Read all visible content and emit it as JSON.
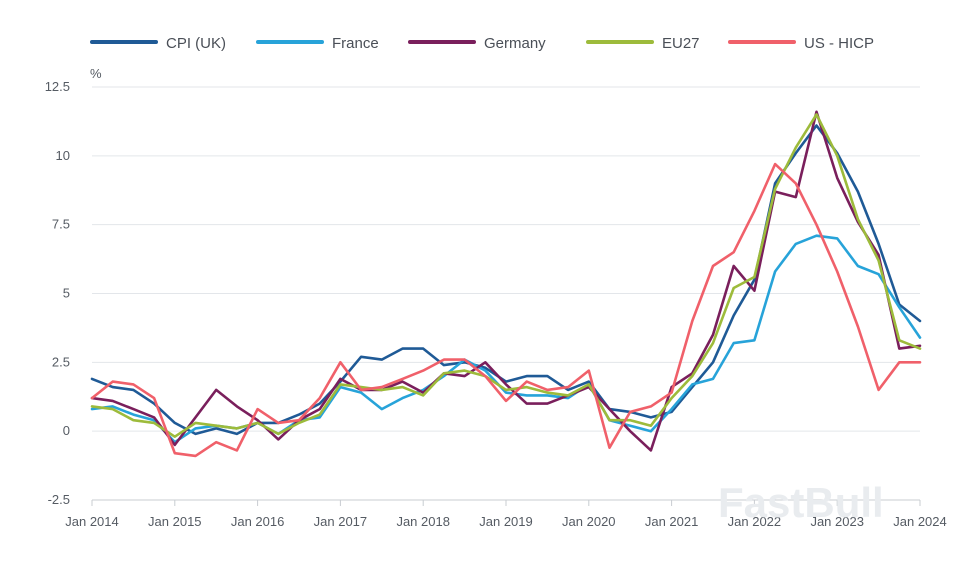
{
  "chart_data": {
    "type": "line",
    "title": "",
    "ylabel": "%",
    "xlabel": "",
    "ylim": [
      -2.5,
      12.5
    ],
    "xlim": [
      2014.0,
      2024.0
    ],
    "yticks": [
      -2.5,
      0,
      2.5,
      5,
      7.5,
      10,
      12.5
    ],
    "ytick_labels": [
      "-2.5",
      "0",
      "2.5",
      "5",
      "7.5",
      "10",
      "12.5"
    ],
    "xticks": [
      2014,
      2015,
      2016,
      2017,
      2018,
      2019,
      2020,
      2021,
      2022,
      2023,
      2024
    ],
    "xtick_labels": [
      "Jan 2014",
      "Jan 2015",
      "Jan 2016",
      "Jan 2017",
      "Jan 2018",
      "Jan 2019",
      "Jan 2020",
      "Jan 2021",
      "Jan 2022",
      "Jan 2023",
      "Jan 2024"
    ],
    "grid": true,
    "legend_position": "top",
    "watermark": "FastBull",
    "series": [
      {
        "name": "CPI (UK)",
        "color": "#1f5a96",
        "points": [
          [
            2014.0,
            1.9
          ],
          [
            2014.25,
            1.6
          ],
          [
            2014.5,
            1.5
          ],
          [
            2014.75,
            1.0
          ],
          [
            2015.0,
            0.3
          ],
          [
            2015.25,
            -0.1
          ],
          [
            2015.5,
            0.1
          ],
          [
            2015.75,
            -0.1
          ],
          [
            2016.0,
            0.3
          ],
          [
            2016.25,
            0.3
          ],
          [
            2016.5,
            0.6
          ],
          [
            2016.75,
            1.0
          ],
          [
            2017.0,
            1.8
          ],
          [
            2017.25,
            2.7
          ],
          [
            2017.5,
            2.6
          ],
          [
            2017.75,
            3.0
          ],
          [
            2018.0,
            3.0
          ],
          [
            2018.25,
            2.4
          ],
          [
            2018.5,
            2.5
          ],
          [
            2018.75,
            2.3
          ],
          [
            2019.0,
            1.8
          ],
          [
            2019.25,
            2.0
          ],
          [
            2019.5,
            2.0
          ],
          [
            2019.75,
            1.5
          ],
          [
            2020.0,
            1.8
          ],
          [
            2020.25,
            0.8
          ],
          [
            2020.5,
            0.7
          ],
          [
            2020.75,
            0.5
          ],
          [
            2021.0,
            0.7
          ],
          [
            2021.25,
            1.6
          ],
          [
            2021.5,
            2.5
          ],
          [
            2021.75,
            4.2
          ],
          [
            2022.0,
            5.5
          ],
          [
            2022.25,
            9.0
          ],
          [
            2022.5,
            10.1
          ],
          [
            2022.75,
            11.1
          ],
          [
            2023.0,
            10.1
          ],
          [
            2023.25,
            8.7
          ],
          [
            2023.5,
            6.8
          ],
          [
            2023.75,
            4.6
          ],
          [
            2024.0,
            4.0
          ]
        ]
      },
      {
        "name": "France",
        "color": "#27a3d9",
        "points": [
          [
            2014.0,
            0.8
          ],
          [
            2014.25,
            0.9
          ],
          [
            2014.5,
            0.6
          ],
          [
            2014.75,
            0.4
          ],
          [
            2015.0,
            -0.4
          ],
          [
            2015.25,
            0.1
          ],
          [
            2015.5,
            0.2
          ],
          [
            2015.75,
            0.1
          ],
          [
            2016.0,
            0.3
          ],
          [
            2016.25,
            -0.1
          ],
          [
            2016.5,
            0.4
          ],
          [
            2016.75,
            0.5
          ],
          [
            2017.0,
            1.6
          ],
          [
            2017.25,
            1.4
          ],
          [
            2017.5,
            0.8
          ],
          [
            2017.75,
            1.2
          ],
          [
            2018.0,
            1.5
          ],
          [
            2018.25,
            2.0
          ],
          [
            2018.5,
            2.6
          ],
          [
            2018.75,
            2.2
          ],
          [
            2019.0,
            1.4
          ],
          [
            2019.25,
            1.3
          ],
          [
            2019.5,
            1.3
          ],
          [
            2019.75,
            1.2
          ],
          [
            2020.0,
            1.7
          ],
          [
            2020.25,
            0.4
          ],
          [
            2020.5,
            0.2
          ],
          [
            2020.75,
            0.0
          ],
          [
            2021.0,
            0.8
          ],
          [
            2021.25,
            1.7
          ],
          [
            2021.5,
            1.9
          ],
          [
            2021.75,
            3.2
          ],
          [
            2022.0,
            3.3
          ],
          [
            2022.25,
            5.8
          ],
          [
            2022.5,
            6.8
          ],
          [
            2022.75,
            7.1
          ],
          [
            2023.0,
            7.0
          ],
          [
            2023.25,
            6.0
          ],
          [
            2023.5,
            5.7
          ],
          [
            2023.75,
            4.5
          ],
          [
            2024.0,
            3.4
          ]
        ]
      },
      {
        "name": "Germany",
        "color": "#7a1f5c",
        "points": [
          [
            2014.0,
            1.2
          ],
          [
            2014.25,
            1.1
          ],
          [
            2014.5,
            0.8
          ],
          [
            2014.75,
            0.5
          ],
          [
            2015.0,
            -0.5
          ],
          [
            2015.25,
            0.5
          ],
          [
            2015.5,
            1.5
          ],
          [
            2015.75,
            0.9
          ],
          [
            2016.0,
            0.4
          ],
          [
            2016.25,
            -0.3
          ],
          [
            2016.5,
            0.4
          ],
          [
            2016.75,
            0.8
          ],
          [
            2017.0,
            1.9
          ],
          [
            2017.25,
            1.5
          ],
          [
            2017.5,
            1.5
          ],
          [
            2017.75,
            1.8
          ],
          [
            2018.0,
            1.4
          ],
          [
            2018.25,
            2.1
          ],
          [
            2018.5,
            2.0
          ],
          [
            2018.75,
            2.5
          ],
          [
            2019.0,
            1.7
          ],
          [
            2019.25,
            1.0
          ],
          [
            2019.5,
            1.0
          ],
          [
            2019.75,
            1.3
          ],
          [
            2020.0,
            1.6
          ],
          [
            2020.25,
            0.8
          ],
          [
            2020.5,
            0.0
          ],
          [
            2020.75,
            -0.7
          ],
          [
            2021.0,
            1.6
          ],
          [
            2021.25,
            2.1
          ],
          [
            2021.5,
            3.5
          ],
          [
            2021.75,
            6.0
          ],
          [
            2022.0,
            5.1
          ],
          [
            2022.25,
            8.7
          ],
          [
            2022.5,
            8.5
          ],
          [
            2022.75,
            11.6
          ],
          [
            2023.0,
            9.2
          ],
          [
            2023.25,
            7.6
          ],
          [
            2023.5,
            6.4
          ],
          [
            2023.75,
            3.0
          ],
          [
            2024.0,
            3.1
          ]
        ]
      },
      {
        "name": "EU27",
        "color": "#9dbb3b",
        "points": [
          [
            2014.0,
            0.9
          ],
          [
            2014.25,
            0.8
          ],
          [
            2014.5,
            0.4
          ],
          [
            2014.75,
            0.3
          ],
          [
            2015.0,
            -0.2
          ],
          [
            2015.25,
            0.3
          ],
          [
            2015.5,
            0.2
          ],
          [
            2015.75,
            0.1
          ],
          [
            2016.0,
            0.3
          ],
          [
            2016.25,
            -0.1
          ],
          [
            2016.5,
            0.3
          ],
          [
            2016.75,
            0.6
          ],
          [
            2017.0,
            1.7
          ],
          [
            2017.25,
            1.6
          ],
          [
            2017.5,
            1.5
          ],
          [
            2017.75,
            1.6
          ],
          [
            2018.0,
            1.3
          ],
          [
            2018.25,
            2.1
          ],
          [
            2018.5,
            2.2
          ],
          [
            2018.75,
            2.0
          ],
          [
            2019.0,
            1.5
          ],
          [
            2019.25,
            1.6
          ],
          [
            2019.5,
            1.4
          ],
          [
            2019.75,
            1.3
          ],
          [
            2020.0,
            1.7
          ],
          [
            2020.25,
            0.4
          ],
          [
            2020.5,
            0.4
          ],
          [
            2020.75,
            0.2
          ],
          [
            2021.0,
            1.2
          ],
          [
            2021.25,
            2.0
          ],
          [
            2021.5,
            3.2
          ],
          [
            2021.75,
            5.2
          ],
          [
            2022.0,
            5.6
          ],
          [
            2022.25,
            8.8
          ],
          [
            2022.5,
            10.3
          ],
          [
            2022.75,
            11.5
          ],
          [
            2023.0,
            10.0
          ],
          [
            2023.25,
            7.7
          ],
          [
            2023.5,
            6.2
          ],
          [
            2023.75,
            3.3
          ],
          [
            2024.0,
            3.0
          ]
        ]
      },
      {
        "name": "US - HICP",
        "color": "#f0606a",
        "points": [
          [
            2014.0,
            1.2
          ],
          [
            2014.25,
            1.8
          ],
          [
            2014.5,
            1.7
          ],
          [
            2014.75,
            1.2
          ],
          [
            2015.0,
            -0.8
          ],
          [
            2015.25,
            -0.9
          ],
          [
            2015.5,
            -0.4
          ],
          [
            2015.75,
            -0.7
          ],
          [
            2016.0,
            0.8
          ],
          [
            2016.25,
            0.3
          ],
          [
            2016.5,
            0.4
          ],
          [
            2016.75,
            1.2
          ],
          [
            2017.0,
            2.5
          ],
          [
            2017.25,
            1.5
          ],
          [
            2017.5,
            1.6
          ],
          [
            2017.75,
            1.9
          ],
          [
            2018.0,
            2.2
          ],
          [
            2018.25,
            2.6
          ],
          [
            2018.5,
            2.6
          ],
          [
            2018.75,
            2.0
          ],
          [
            2019.0,
            1.1
          ],
          [
            2019.25,
            1.8
          ],
          [
            2019.5,
            1.5
          ],
          [
            2019.75,
            1.6
          ],
          [
            2020.0,
            2.2
          ],
          [
            2020.25,
            -0.6
          ],
          [
            2020.5,
            0.7
          ],
          [
            2020.75,
            0.9
          ],
          [
            2021.0,
            1.4
          ],
          [
            2021.25,
            4.0
          ],
          [
            2021.5,
            6.0
          ],
          [
            2021.75,
            6.5
          ],
          [
            2022.0,
            8.0
          ],
          [
            2022.25,
            9.7
          ],
          [
            2022.5,
            9.0
          ],
          [
            2022.75,
            7.5
          ],
          [
            2023.0,
            5.8
          ],
          [
            2023.25,
            3.8
          ],
          [
            2023.5,
            1.5
          ],
          [
            2023.75,
            2.5
          ],
          [
            2024.0,
            2.5
          ]
        ]
      }
    ]
  }
}
